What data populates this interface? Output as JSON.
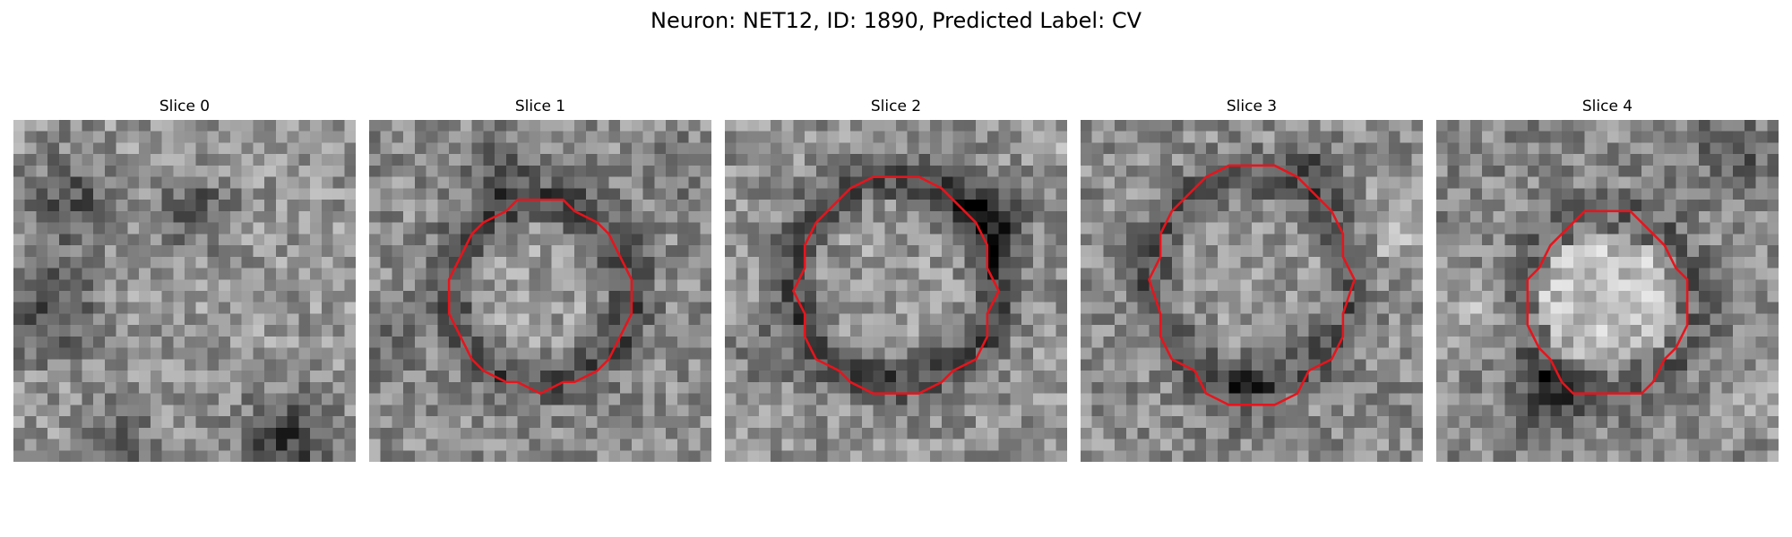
{
  "figure": {
    "title": "Neuron: NET12, ID: 1890, Predicted Label: CV"
  },
  "slices": [
    {
      "label": "Slice 0",
      "has_contour": false
    },
    {
      "label": "Slice 1",
      "has_contour": true
    },
    {
      "label": "Slice 2",
      "has_contour": true
    },
    {
      "label": "Slice 3",
      "has_contour": true
    },
    {
      "label": "Slice 4",
      "has_contour": true
    }
  ],
  "colors": {
    "contour": "#e8141c",
    "colormap": "grayscale"
  }
}
